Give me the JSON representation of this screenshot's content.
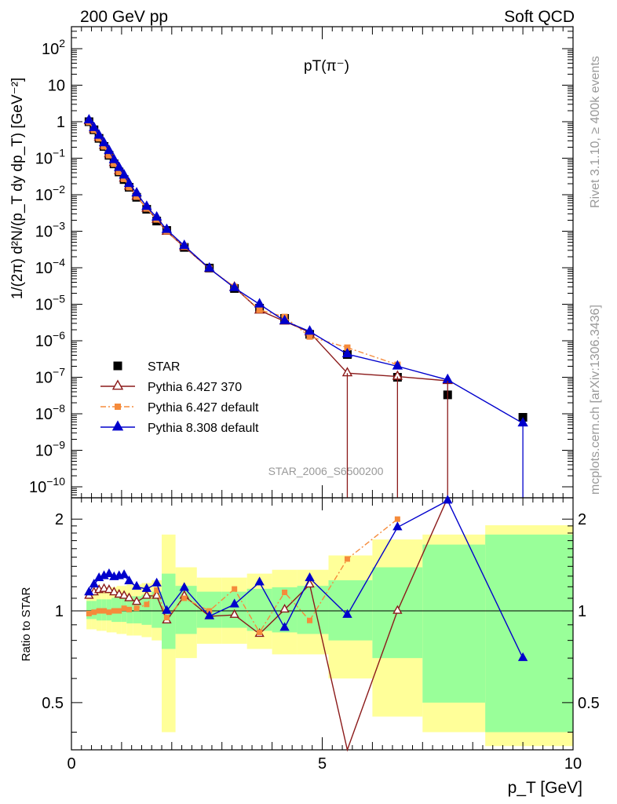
{
  "header": {
    "left_label": "200 GeV pp",
    "right_label": "Soft QCD",
    "side_label_top": "Rivet 3.1.10, ≥ 400k events",
    "side_label_bottom": "mcplots.cern.ch [arXiv:1306.3436]",
    "watermark": "STAR_2006_S6500200"
  },
  "chart_data": [
    {
      "type": "scatter",
      "title": "pT(π⁻)",
      "xlabel": "p_T [GeV]",
      "ylabel": "1/(2π) d²N/(p_T dy dp_T) [GeV⁻²]",
      "xlim": [
        0,
        10
      ],
      "ylim": [
        5e-11,
        400
      ],
      "yscale": "log",
      "yticks": [
        "10^-10",
        "10^-9",
        "10^-8",
        "10^-7",
        "10^-6",
        "10^-5",
        "10^-4",
        "10^-3",
        "10^-2",
        "10^-1",
        "1",
        "10",
        "10^2"
      ],
      "legend_position": "lower-left",
      "x": [
        0.35,
        0.45,
        0.55,
        0.65,
        0.75,
        0.85,
        0.95,
        1.05,
        1.15,
        1.3,
        1.5,
        1.7,
        1.9,
        2.25,
        2.75,
        3.25,
        3.75,
        4.25,
        4.75,
        5.5,
        6.5,
        7.5,
        9.0
      ],
      "series": [
        {
          "name": "STAR",
          "color": "#000000",
          "marker": "square",
          "values": [
            1.0,
            0.6,
            0.35,
            0.21,
            0.12,
            0.07,
            0.042,
            0.026,
            0.016,
            0.0085,
            0.004,
            0.0019,
            0.00105,
            0.00036,
            9.8e-05,
            2.7e-05,
            7.8e-06,
            4.1e-06,
            1.5e-06,
            4.2e-07,
            1e-07,
            3.3e-08,
            8e-09
          ]
        },
        {
          "name": "Pythia 6.427 370",
          "color": "#8b1a1a",
          "marker": "open-triangle",
          "values": [
            1.05,
            0.62,
            0.37,
            0.22,
            0.13,
            0.075,
            0.045,
            0.028,
            0.017,
            0.009,
            0.0042,
            0.0021,
            0.00098,
            0.00037,
            9.4e-05,
            2.9e-05,
            6.8e-06,
            3.4e-06,
            1.7e-06,
            1.3e-07,
            1.05e-07,
            8e-08
          ]
        },
        {
          "name": "Pythia 6.427 default",
          "color": "#f58b3b",
          "marker": "square",
          "values": [
            0.98,
            0.59,
            0.35,
            0.21,
            0.12,
            0.07,
            0.042,
            0.027,
            0.016,
            0.0088,
            0.0042,
            0.0021,
            0.001,
            0.00038,
            9.5e-05,
            3e-05,
            7e-06,
            4.5e-06,
            1.3e-06,
            6.5e-07,
            2.2e-07
          ]
        },
        {
          "name": "Pythia 8.308 default",
          "color": "#0000cc",
          "marker": "triangle",
          "values": [
            1.1,
            0.68,
            0.42,
            0.26,
            0.16,
            0.09,
            0.055,
            0.034,
            0.02,
            0.011,
            0.0047,
            0.0024,
            0.0011,
            0.0004,
            9.6e-05,
            2.8e-05,
            1e-05,
            3.5e-06,
            1.8e-06,
            4.3e-07,
            2e-07,
            8.5e-08,
            5.5e-09
          ]
        }
      ]
    },
    {
      "type": "line",
      "ylabel": "Ratio to STAR",
      "xlabel": "p_T [GeV]",
      "xlim": [
        0,
        10
      ],
      "ylim": [
        0.35,
        2.35
      ],
      "yscale": "log",
      "yticks": [
        0.5,
        1,
        2
      ],
      "xticks": [
        0,
        5,
        10
      ],
      "series": [
        {
          "name": "Pythia 6.427 370",
          "color": "#8b1a1a",
          "values": [
            1.12,
            1.15,
            1.17,
            1.18,
            1.17,
            1.15,
            1.13,
            1.12,
            1.1,
            1.07,
            1.12,
            1.12,
            0.93,
            1.12,
            0.96,
            0.97,
            0.84,
            1.01,
            1.22,
            0.3,
            1.0,
            2.4
          ]
        },
        {
          "name": "Pythia 6.427 default",
          "color": "#f58b3b",
          "values": [
            0.98,
            0.99,
            1.0,
            1.0,
            0.99,
            1.0,
            1.0,
            1.02,
            1.01,
            1.02,
            1.05,
            1.17,
            0.95,
            1.1,
            1.0,
            1.18,
            0.85,
            1.15,
            0.93,
            1.48,
            2.0
          ]
        },
        {
          "name": "Pythia 8.308 default",
          "color": "#0000cc",
          "values": [
            1.15,
            1.22,
            1.28,
            1.3,
            1.32,
            1.29,
            1.3,
            1.31,
            1.25,
            1.2,
            1.18,
            1.23,
            1.0,
            1.19,
            0.96,
            1.05,
            1.24,
            0.88,
            1.28,
            0.97,
            1.88,
            2.3,
            0.7
          ]
        }
      ]
    }
  ]
}
